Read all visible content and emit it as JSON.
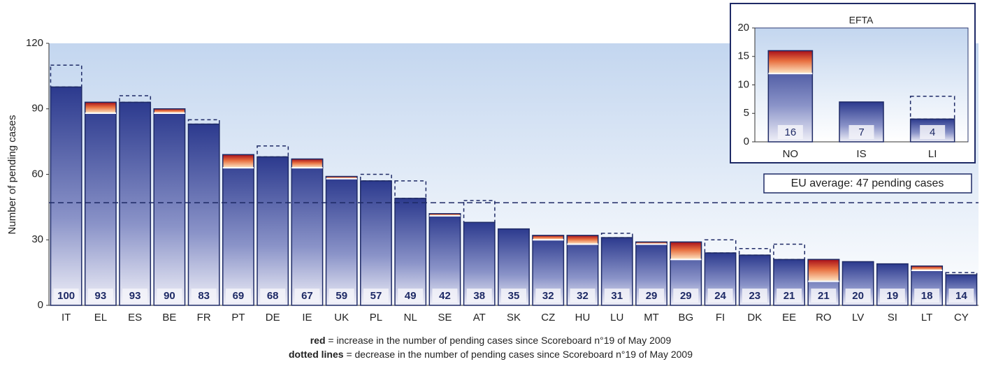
{
  "chart_data": [
    {
      "type": "bar",
      "y_label": "Number of pending cases",
      "categories": [
        "IT",
        "EL",
        "ES",
        "BE",
        "FR",
        "PT",
        "DE",
        "IE",
        "UK",
        "PL",
        "NL",
        "SE",
        "AT",
        "SK",
        "CZ",
        "HU",
        "LU",
        "MT",
        "BG",
        "FI",
        "DK",
        "EE",
        "RO",
        "LV",
        "SI",
        "LT",
        "CY"
      ],
      "values": [
        100,
        93,
        93,
        90,
        83,
        69,
        68,
        67,
        59,
        57,
        49,
        42,
        38,
        35,
        32,
        32,
        31,
        29,
        29,
        24,
        23,
        21,
        21,
        20,
        19,
        18,
        14
      ],
      "previous_values": [
        110,
        88,
        96,
        88,
        85,
        63,
        73,
        63,
        58,
        60,
        57,
        41,
        48,
        35,
        30,
        28,
        33,
        28,
        21,
        30,
        26,
        28,
        11,
        20,
        19,
        16,
        15
      ],
      "ylim": [
        0,
        120
      ],
      "yticks": [
        0,
        30,
        60,
        90,
        120
      ],
      "average": 47,
      "average_label": "EU average: 47 pending cases",
      "notes": [
        {
          "bold": "red",
          "text": " = increase in the number of pending cases since Scoreboard n°19 of May 2009"
        },
        {
          "bold": "dotted lines",
          "text": " = decrease in the number of pending cases since  Scoreboard n°19 of May 2009"
        }
      ]
    },
    {
      "type": "bar",
      "title": "EFTA",
      "categories": [
        "NO",
        "IS",
        "LI"
      ],
      "values": [
        16,
        7,
        4
      ],
      "previous_values": [
        12,
        7,
        8
      ],
      "ylim": [
        0,
        20
      ],
      "yticks": [
        0,
        5,
        10,
        15,
        20
      ]
    }
  ]
}
